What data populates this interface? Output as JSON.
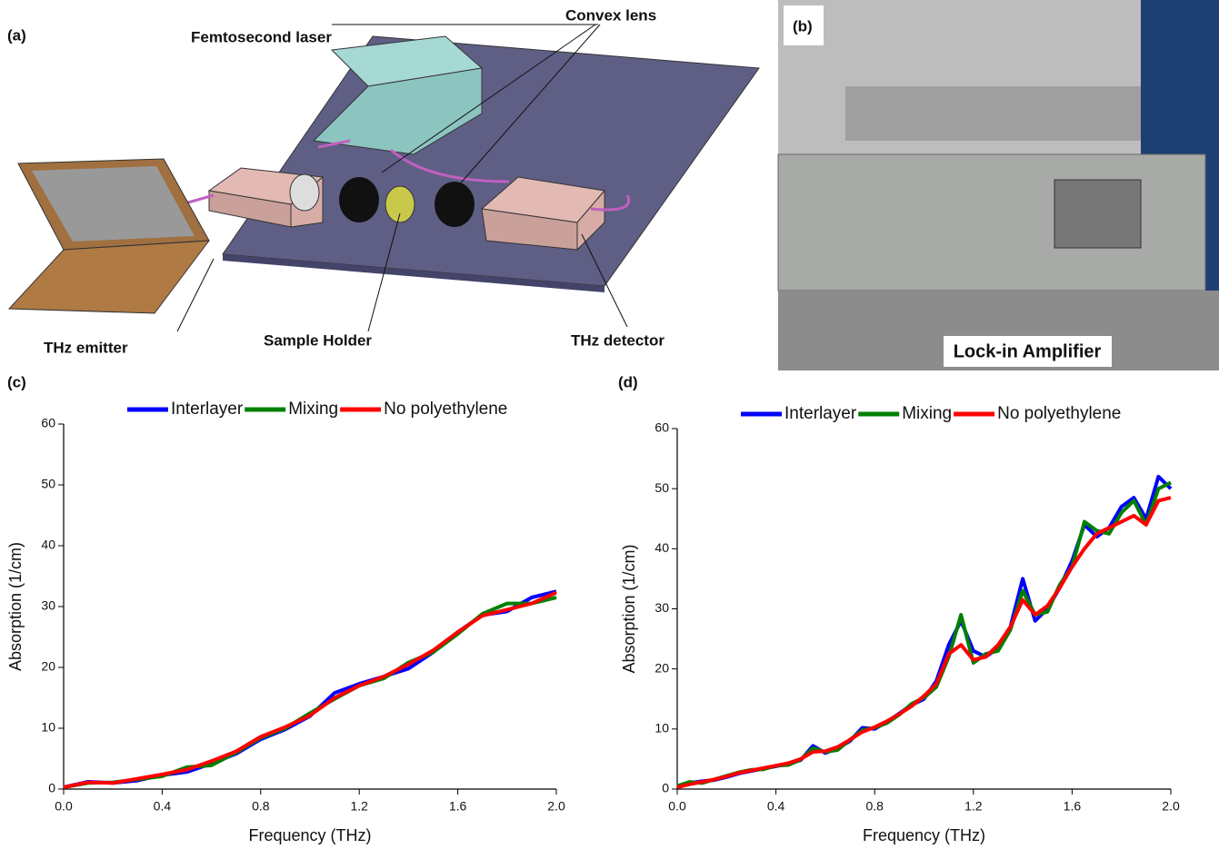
{
  "diagram": {
    "panel_label": "(a)",
    "labels": [
      "Femtosecond laser",
      "Convex lens",
      "THz emitter",
      "Sample Holder",
      "THz detector"
    ]
  },
  "photo": {
    "panel_label": "(b)",
    "caption": "Lock-in Amplifier"
  },
  "chart_data": [
    {
      "type": "line",
      "panel_label": "(c)",
      "x_label": "Frequency (THz)",
      "y_label": "Absorption (1/cm)",
      "x": [
        0,
        0.1,
        0.2,
        0.3,
        0.4,
        0.5,
        0.6,
        0.7,
        0.8,
        0.9,
        1.0,
        1.1,
        1.2,
        1.3,
        1.4,
        1.5,
        1.6,
        1.7,
        1.8,
        1.9,
        2.0
      ],
      "series": [
        {
          "name": "Interlayer",
          "color": "#0000ff",
          "values": [
            0.3,
            1.2,
            1.0,
            1.4,
            2.3,
            2.8,
            4.2,
            5.8,
            8.2,
            9.8,
            12.0,
            15.8,
            17.3,
            18.5,
            19.8,
            22.5,
            25.8,
            28.6,
            29.2,
            31.5,
            32.5
          ]
        },
        {
          "name": "Mixing",
          "color": "#008000",
          "values": [
            0.3,
            1.0,
            1.1,
            1.6,
            2.1,
            3.6,
            3.9,
            6.0,
            8.4,
            10.0,
            12.5,
            14.8,
            17.0,
            18.2,
            20.8,
            22.5,
            25.5,
            28.8,
            30.5,
            30.5,
            31.5
          ]
        },
        {
          "name": "No polyethylene",
          "color": "#ff0000",
          "values": [
            0.3,
            1.1,
            1.0,
            1.7,
            2.4,
            3.2,
            4.6,
            6.2,
            8.6,
            10.2,
            12.1,
            15.0,
            17.0,
            18.5,
            20.5,
            22.8,
            25.8,
            28.5,
            29.5,
            30.5,
            32.3
          ]
        }
      ],
      "xlim": [
        0,
        2
      ],
      "xticks": [
        {
          "value": 0,
          "label": "0.0"
        },
        0.4,
        0.8,
        1.2,
        1.6,
        {
          "value": 2,
          "label": "2.0"
        }
      ],
      "ylim": [
        0,
        60
      ],
      "yticks": [
        0,
        10,
        20,
        30,
        40,
        50,
        60
      ]
    },
    {
      "type": "line",
      "panel_label": "(d)",
      "x_label": "Frequency (THz)",
      "y_label": "Absorption (1/cm)",
      "x": [
        0,
        0.05,
        0.1,
        0.15,
        0.2,
        0.25,
        0.3,
        0.35,
        0.4,
        0.45,
        0.5,
        0.55,
        0.6,
        0.65,
        0.7,
        0.75,
        0.8,
        0.85,
        0.9,
        0.95,
        1.0,
        1.05,
        1.1,
        1.15,
        1.2,
        1.25,
        1.3,
        1.35,
        1.4,
        1.45,
        1.5,
        1.55,
        1.6,
        1.65,
        1.7,
        1.75,
        1.8,
        1.85,
        1.9,
        1.95,
        2.0
      ],
      "series": [
        {
          "name": "Interlayer",
          "color": "#0000ff",
          "values": [
            0.5,
            1.0,
            1.3,
            1.5,
            2.0,
            2.6,
            3.0,
            3.4,
            3.8,
            4.2,
            4.8,
            7.2,
            6.0,
            6.8,
            8.0,
            10.2,
            10.0,
            11.2,
            12.6,
            14.0,
            15.0,
            18.0,
            24.0,
            28.0,
            23.0,
            22.0,
            23.5,
            27.0,
            35.0,
            28.0,
            30.0,
            33.5,
            38.0,
            44.0,
            42.0,
            43.5,
            47.0,
            48.5,
            45.0,
            52.0,
            50.0
          ]
        },
        {
          "name": "Mixing",
          "color": "#008000",
          "values": [
            0.5,
            1.2,
            1.0,
            1.6,
            2.2,
            2.8,
            3.2,
            3.3,
            3.9,
            4.0,
            4.9,
            6.8,
            6.2,
            6.5,
            8.2,
            9.8,
            10.2,
            11.0,
            12.4,
            14.2,
            15.2,
            17.0,
            22.0,
            29.0,
            21.0,
            22.5,
            23.0,
            26.5,
            33.0,
            29.0,
            29.5,
            34.0,
            37.0,
            44.5,
            43.0,
            42.5,
            46.0,
            48.0,
            44.0,
            50.0,
            51.0
          ]
        },
        {
          "name": "No polyethylene",
          "color": "#ff0000",
          "values": [
            0.3,
            0.8,
            1.2,
            1.6,
            2.1,
            2.7,
            3.1,
            3.5,
            3.9,
            4.3,
            5.0,
            6.2,
            6.3,
            7.0,
            8.2,
            9.5,
            10.3,
            11.3,
            12.5,
            13.8,
            15.5,
            17.5,
            22.5,
            24.0,
            21.5,
            22.0,
            24.0,
            27.0,
            31.5,
            29.0,
            30.5,
            33.5,
            37.0,
            40.0,
            42.5,
            43.5,
            44.5,
            45.5,
            44.0,
            48.0,
            48.5
          ]
        }
      ],
      "xlim": [
        0,
        2
      ],
      "xticks": [
        {
          "value": 0,
          "label": "0.0"
        },
        0.4,
        0.8,
        1.2,
        1.6,
        {
          "value": 2,
          "label": "2.0"
        }
      ],
      "ylim": [
        0,
        60
      ],
      "yticks": [
        0,
        10,
        20,
        30,
        40,
        50,
        60
      ]
    }
  ]
}
